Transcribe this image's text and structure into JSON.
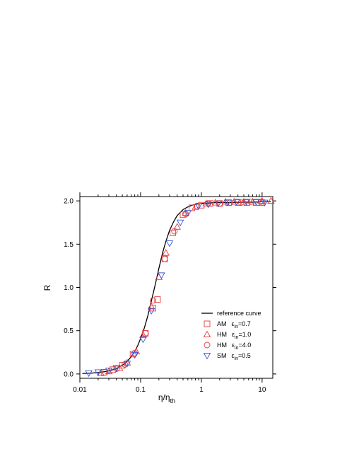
{
  "chart_data": {
    "type": "scatter",
    "title": "",
    "xlabel": "η/η",
    "xlabel_sub": "th",
    "ylabel": "R",
    "xscale": "log",
    "xlim": [
      0.01,
      15
    ],
    "ylim": [
      -0.05,
      2.05
    ],
    "xticks": [
      {
        "value": 0.01,
        "label": "0.01"
      },
      {
        "value": 0.1,
        "label": "0.1"
      },
      {
        "value": 1,
        "label": "1"
      },
      {
        "value": 10,
        "label": "10"
      }
    ],
    "yticks": [
      {
        "value": 0.0,
        "label": "0.0"
      },
      {
        "value": 0.5,
        "label": "0.5"
      },
      {
        "value": 1.0,
        "label": "1.0"
      },
      {
        "value": 1.5,
        "label": "1.5"
      },
      {
        "value": 2.0,
        "label": "2.0"
      }
    ],
    "grid": false,
    "legend_position": "lower-right",
    "reference_curve": {
      "name": "reference curve",
      "color": "#000000",
      "x": [
        0.011,
        0.015,
        0.02,
        0.025,
        0.03,
        0.035,
        0.04,
        0.05,
        0.06,
        0.07,
        0.08,
        0.09,
        0.1,
        0.115,
        0.13,
        0.15,
        0.17,
        0.2,
        0.23,
        0.26,
        0.3,
        0.35,
        0.4,
        0.5,
        0.6,
        0.7,
        0.8,
        1.0,
        1.3,
        1.7,
        2.2,
        3.0,
        4.5,
        7.0,
        10.0,
        14.0
      ],
      "y": [
        0.005,
        0.009,
        0.016,
        0.025,
        0.036,
        0.049,
        0.064,
        0.1,
        0.145,
        0.2,
        0.26,
        0.33,
        0.41,
        0.53,
        0.66,
        0.84,
        1.0,
        1.22,
        1.4,
        1.53,
        1.66,
        1.76,
        1.83,
        1.9,
        1.93,
        1.95,
        1.96,
        1.97,
        1.975,
        1.98,
        1.98,
        1.98,
        1.985,
        1.985,
        1.99,
        1.99
      ]
    },
    "series": [
      {
        "name": "AM",
        "param_symbol": "ε",
        "param_sub": "in",
        "param_value": "=0.7",
        "marker": "square",
        "color": "#e8393a",
        "x": [
          0.025,
          0.035,
          0.05,
          0.075,
          0.12,
          0.16,
          0.19,
          0.25,
          0.34,
          0.5,
          0.7,
          1.0,
          1.4,
          2.0,
          2.8,
          4.0,
          5.6,
          8.0,
          10.0
        ],
        "y": [
          0.02,
          0.05,
          0.1,
          0.23,
          0.47,
          0.76,
          0.86,
          1.33,
          1.63,
          1.84,
          1.92,
          1.95,
          1.97,
          1.97,
          1.98,
          1.98,
          1.98,
          1.98,
          1.98
        ]
      },
      {
        "name": "HM",
        "param_symbol": "ε",
        "param_sub": "in",
        "param_value": "=1.0",
        "marker": "triangle-up",
        "color": "#e8393a",
        "x": [
          0.022,
          0.03,
          0.045,
          0.06,
          0.085,
          0.11,
          0.15,
          0.2,
          0.26,
          0.4,
          0.55,
          0.8,
          1.2,
          1.7,
          2.5,
          3.5,
          5.0,
          7.0,
          10.0,
          14.0
        ],
        "y": [
          0.01,
          0.03,
          0.07,
          0.13,
          0.26,
          0.45,
          0.78,
          1.12,
          1.4,
          1.7,
          1.86,
          1.93,
          1.97,
          1.98,
          1.99,
          1.99,
          1.99,
          1.99,
          2.0,
          2.0
        ]
      },
      {
        "name": "HM",
        "param_symbol": "ε",
        "param_sub": "in",
        "param_value": "=4.0",
        "marker": "circle",
        "color": "#e8393a",
        "x": [
          0.026,
          0.04,
          0.055,
          0.08,
          0.12,
          0.16,
          0.25,
          0.36,
          0.55,
          0.85,
          1.3,
          2.0,
          3.0,
          4.5,
          6.5,
          9.5
        ],
        "y": [
          0.02,
          0.06,
          0.11,
          0.24,
          0.47,
          0.85,
          1.33,
          1.65,
          1.85,
          1.94,
          1.97,
          1.97,
          1.98,
          1.98,
          1.99,
          1.99
        ]
      },
      {
        "name": "SM",
        "param_symbol": "ε",
        "param_sub": "in",
        "param_value": "=0.5",
        "marker": "triangle-down",
        "color": "#3a57d6",
        "x": [
          0.014,
          0.02,
          0.03,
          0.04,
          0.06,
          0.08,
          0.11,
          0.15,
          0.22,
          0.3,
          0.45,
          0.6,
          0.9,
          1.3,
          1.9,
          2.7,
          3.8,
          5.5,
          8.0,
          11.0
        ],
        "y": [
          0.01,
          0.02,
          0.04,
          0.07,
          0.12,
          0.22,
          0.4,
          0.73,
          1.14,
          1.51,
          1.75,
          1.86,
          1.94,
          1.96,
          1.97,
          1.98,
          1.99,
          1.99,
          1.99,
          1.98
        ]
      }
    ]
  },
  "legend": {
    "items": [
      {
        "text": "reference curve"
      },
      {
        "text": "AM",
        "param_symbol": "ε",
        "param_sub": "in",
        "param_value": "=0.7"
      },
      {
        "text": "HM",
        "param_symbol": "ε",
        "param_sub": "in",
        "param_value": "=1.0"
      },
      {
        "text": "HM",
        "param_symbol": "ε",
        "param_sub": "in",
        "param_value": "=4.0"
      },
      {
        "text": "SM",
        "param_symbol": "ε",
        "param_sub": "in",
        "param_value": "=0.5"
      }
    ]
  }
}
